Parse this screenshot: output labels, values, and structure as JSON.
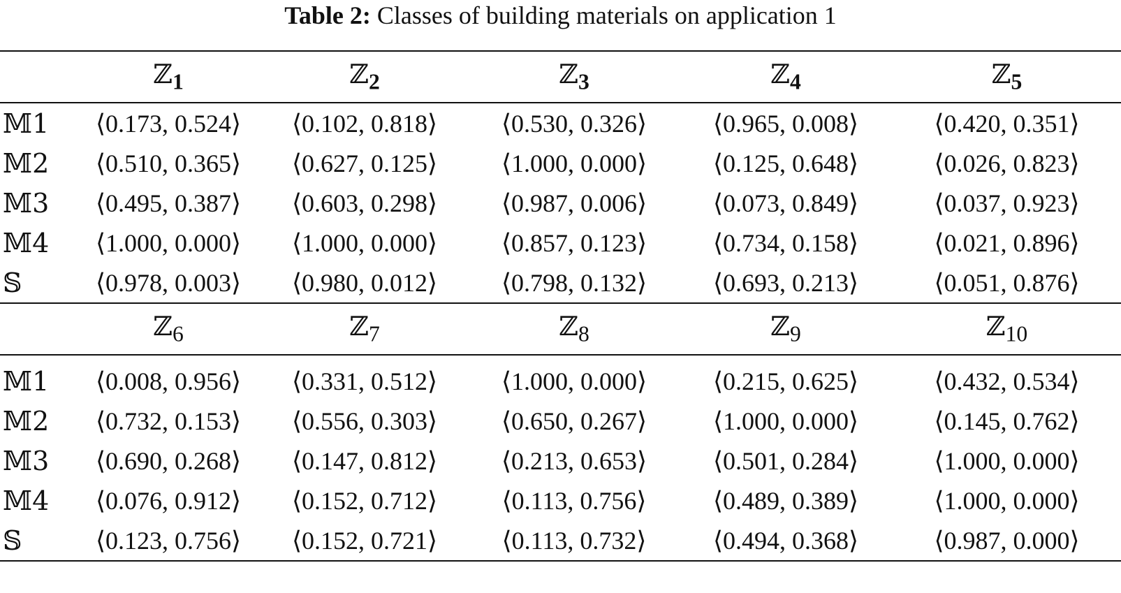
{
  "caption": {
    "label": "Table 2:",
    "text": "Classes of building materials on application 1"
  },
  "top": {
    "headers": [
      "ℤ1",
      "ℤ2",
      "ℤ3",
      "ℤ4",
      "ℤ5"
    ],
    "header_symbol": "ℤ",
    "header_subs": [
      "1",
      "2",
      "3",
      "4",
      "5"
    ],
    "rows": [
      {
        "label": "𝕄1",
        "cells": [
          "⟨0.173, 0.524⟩",
          "⟨0.102, 0.818⟩",
          "⟨0.530, 0.326⟩",
          "⟨0.965, 0.008⟩",
          "⟨0.420, 0.351⟩"
        ]
      },
      {
        "label": "𝕄2",
        "cells": [
          "⟨0.510, 0.365⟩",
          "⟨0.627, 0.125⟩",
          "⟨1.000, 0.000⟩",
          "⟨0.125, 0.648⟩",
          "⟨0.026, 0.823⟩"
        ]
      },
      {
        "label": "𝕄3",
        "cells": [
          "⟨0.495, 0.387⟩",
          "⟨0.603, 0.298⟩",
          "⟨0.987, 0.006⟩",
          "⟨0.073, 0.849⟩",
          "⟨0.037, 0.923⟩"
        ]
      },
      {
        "label": "𝕄4",
        "cells": [
          "⟨1.000, 0.000⟩",
          "⟨1.000, 0.000⟩",
          "⟨0.857, 0.123⟩",
          "⟨0.734, 0.158⟩",
          "⟨0.021, 0.896⟩"
        ]
      },
      {
        "label": "𝕊",
        "cells": [
          "⟨0.978, 0.003⟩",
          "⟨0.980, 0.012⟩",
          "⟨0.798, 0.132⟩",
          "⟨0.693, 0.213⟩",
          "⟨0.051, 0.876⟩"
        ]
      }
    ]
  },
  "bottom": {
    "headers": [
      "ℤ6",
      "ℤ7",
      "ℤ8",
      "ℤ9",
      "ℤ10"
    ],
    "header_symbol": "ℤ",
    "header_subs": [
      "6",
      "7",
      "8",
      "9",
      "10"
    ],
    "rows": [
      {
        "label": "𝕄1",
        "cells": [
          "⟨0.008, 0.956⟩",
          "⟨0.331, 0.512⟩",
          "⟨1.000, 0.000⟩",
          "⟨0.215, 0.625⟩",
          "⟨0.432, 0.534⟩"
        ]
      },
      {
        "label": "𝕄2",
        "cells": [
          "⟨0.732, 0.153⟩",
          "⟨0.556, 0.303⟩",
          "⟨0.650, 0.267⟩",
          "⟨1.000, 0.000⟩",
          "⟨0.145, 0.762⟩"
        ]
      },
      {
        "label": "𝕄3",
        "cells": [
          "⟨0.690, 0.268⟩",
          "⟨0.147, 0.812⟩",
          "⟨0.213, 0.653⟩",
          "⟨0.501, 0.284⟩",
          "⟨1.000, 0.000⟩"
        ]
      },
      {
        "label": "𝕄4",
        "cells": [
          "⟨0.076, 0.912⟩",
          "⟨0.152, 0.712⟩",
          "⟨0.113, 0.756⟩",
          "⟨0.489, 0.389⟩",
          "⟨1.000, 0.000⟩"
        ]
      },
      {
        "label": "𝕊",
        "cells": [
          "⟨0.123, 0.756⟩",
          "⟨0.152, 0.721⟩",
          "⟨0.113, 0.732⟩",
          "⟨0.494, 0.368⟩",
          "⟨0.987, 0.000⟩"
        ]
      }
    ]
  }
}
